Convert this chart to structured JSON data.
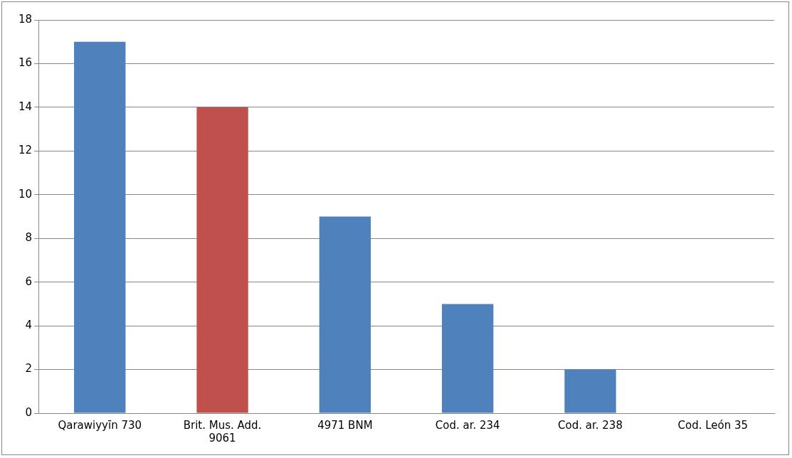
{
  "chart_data": {
    "type": "bar",
    "categories": [
      "Qarawiyyīn 730",
      "Brit. Mus. Add. 9061",
      "4971 BNM",
      "Cod. ar. 234",
      "Cod. ar. 238",
      "Cod. León 35"
    ],
    "values": [
      17,
      14,
      9,
      5,
      2,
      0
    ],
    "colors": [
      "#4f81bd",
      "#c0504d",
      "#4f81bd",
      "#4f81bd",
      "#4f81bd",
      "#4f81bd"
    ],
    "ylim": [
      0,
      18
    ],
    "yticks": [
      0,
      2,
      4,
      6,
      8,
      10,
      12,
      14,
      16,
      18
    ],
    "grid": "y"
  }
}
